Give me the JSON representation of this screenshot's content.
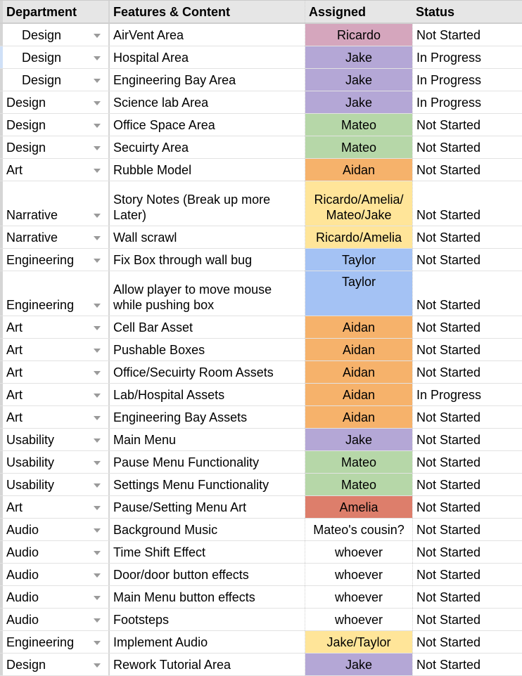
{
  "header": {
    "department": "Department",
    "features": "Features & Content",
    "assigned": "Assigned",
    "status": "Status"
  },
  "colors": {
    "Ricardo": "#d5a6bd",
    "Jake": "#b4a7d6",
    "Mateo": "#b6d7a8",
    "Aidan": "#f6b26b",
    "Taylor": "#a4c2f4",
    "Amelia": "#dd7e6b",
    "Group": "#ffe599",
    "None": "#ffffff"
  },
  "rows": [
    {
      "department": "Design",
      "feature": "AirVent Area",
      "assigned": "Ricardo",
      "status": "Not Started"
    },
    {
      "department": "Design",
      "feature": "Hospital Area",
      "assigned": "Jake",
      "status": "In Progress"
    },
    {
      "department": "Design",
      "feature": "Engineering Bay Area",
      "assigned": "Jake",
      "status": "In Progress"
    },
    {
      "department": "Design",
      "feature": "Science lab Area",
      "assigned": "Jake",
      "status": "In Progress"
    },
    {
      "department": "Design",
      "feature": "Office Space Area",
      "assigned": "Mateo",
      "status": "Not Started"
    },
    {
      "department": "Design",
      "feature": "Secuirty Area",
      "assigned": "Mateo",
      "status": "Not Started"
    },
    {
      "department": "Art",
      "feature": "Rubble Model",
      "assigned": "Aidan",
      "status": "Not Started"
    },
    {
      "department": "Narrative",
      "feature": "Story Notes (Break up more Later)",
      "assigned": "Ricardo/Amelia/ Mateo/Jake",
      "status": "Not Started"
    },
    {
      "department": "Narrative",
      "feature": "Wall scrawl",
      "assigned": "Ricardo/Amelia",
      "status": "Not Started"
    },
    {
      "department": "Engineering",
      "feature": "Fix Box through wall bug",
      "assigned": "Taylor",
      "status": "Not Started"
    },
    {
      "department": "Engineering",
      "feature": "Allow player to move mouse while pushing box",
      "assigned": "Taylor",
      "status": "Not Started"
    },
    {
      "department": "Art",
      "feature": "Cell Bar Asset",
      "assigned": "Aidan",
      "status": "Not Started"
    },
    {
      "department": "Art",
      "feature": "Pushable Boxes",
      "assigned": "Aidan",
      "status": "Not Started"
    },
    {
      "department": "Art",
      "feature": "Office/Secuirty Room Assets",
      "assigned": "Aidan",
      "status": "Not Started"
    },
    {
      "department": "Art",
      "feature": "Lab/Hospital Assets",
      "assigned": "Aidan",
      "status": "In Progress"
    },
    {
      "department": "Art",
      "feature": "Engineering Bay Assets",
      "assigned": "Aidan",
      "status": "Not Started"
    },
    {
      "department": "Usability",
      "feature": "Main Menu",
      "assigned": "Jake",
      "status": "Not Started"
    },
    {
      "department": "Usability",
      "feature": "Pause Menu Functionality",
      "assigned": "Mateo",
      "status": "Not Started"
    },
    {
      "department": "Usability",
      "feature": "Settings Menu Functionality",
      "assigned": "Mateo",
      "status": "Not Started"
    },
    {
      "department": "Art",
      "feature": "Pause/Setting Menu Art",
      "assigned": "Amelia",
      "status": "Not Started"
    },
    {
      "department": "Audio",
      "feature": "Background Music",
      "assigned": "Mateo's cousin?",
      "status": "Not Started"
    },
    {
      "department": "Audio",
      "feature": "Time Shift Effect",
      "assigned": "whoever",
      "status": "Not Started"
    },
    {
      "department": "Audio",
      "feature": "Door/door button effects",
      "assigned": "whoever",
      "status": "Not Started"
    },
    {
      "department": "Audio",
      "feature": "Main Menu button effects",
      "assigned": "whoever",
      "status": "Not Started"
    },
    {
      "department": "Audio",
      "feature": "Footsteps",
      "assigned": "whoever",
      "status": "Not Started"
    },
    {
      "department": "Engineering",
      "feature": "Implement Audio",
      "assigned": "Jake/Taylor",
      "status": "Not Started"
    },
    {
      "department": "Design",
      "feature": "Rework Tutorial Area",
      "assigned": "Jake",
      "status": "Not Started"
    }
  ]
}
